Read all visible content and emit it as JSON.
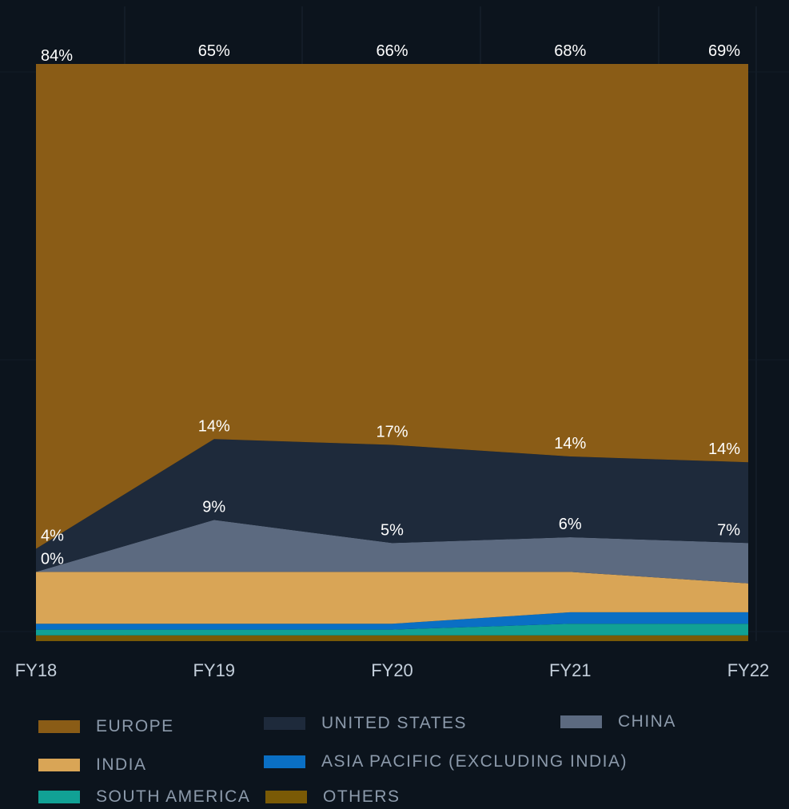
{
  "chart_data": {
    "type": "area",
    "stacked": true,
    "normalized": true,
    "categories": [
      "FY18",
      "FY19",
      "FY20",
      "FY21",
      "FY22"
    ],
    "series": [
      {
        "name": "OTHERS",
        "color": "#7a5a06",
        "values": [
          1,
          1,
          1,
          1,
          1
        ]
      },
      {
        "name": "SOUTH AMERICA",
        "color": "#11a195",
        "values": [
          1,
          1,
          1,
          2,
          2
        ]
      },
      {
        "name": "ASIA PACIFIC (EXCLUDING INDIA)",
        "color": "#0a6fc4",
        "values": [
          1,
          1,
          1,
          2,
          2
        ]
      },
      {
        "name": "INDIA",
        "color": "#d9a556",
        "values": [
          9,
          9,
          9,
          7,
          5
        ]
      },
      {
        "name": "CHINA",
        "color": "#5c6a80",
        "values": [
          0,
          9,
          5,
          6,
          7
        ]
      },
      {
        "name": "UNITED STATES",
        "color": "#1e2a3b",
        "values": [
          4,
          14,
          17,
          14,
          14
        ]
      },
      {
        "name": "EUROPE",
        "color": "#8a5c16",
        "values": [
          84,
          65,
          66,
          68,
          69
        ]
      }
    ],
    "data_labels": {
      "EUROPE": [
        "84%",
        "65%",
        "66%",
        "68%",
        "69%"
      ],
      "UNITED STATES": [
        "4%",
        "14%",
        "17%",
        "14%",
        "14%"
      ],
      "CHINA": [
        "0%",
        "9%",
        "5%",
        "6%",
        "7%"
      ]
    },
    "ylim": [
      0,
      100
    ],
    "grid": true,
    "legend_position": "bottom"
  },
  "legend": [
    {
      "label": "EUROPE",
      "color": "#8a5c16"
    },
    {
      "label": "UNITED STATES",
      "color": "#1e2a3b"
    },
    {
      "label": "CHINA",
      "color": "#5c6a80"
    },
    {
      "label": "INDIA",
      "color": "#d9a556"
    },
    {
      "label": "ASIA PACIFIC (EXCLUDING INDIA)",
      "color": "#0a6fc4"
    },
    {
      "label": "SOUTH AMERICA",
      "color": "#11a195"
    },
    {
      "label": "OTHERS",
      "color": "#7a5a06"
    }
  ]
}
